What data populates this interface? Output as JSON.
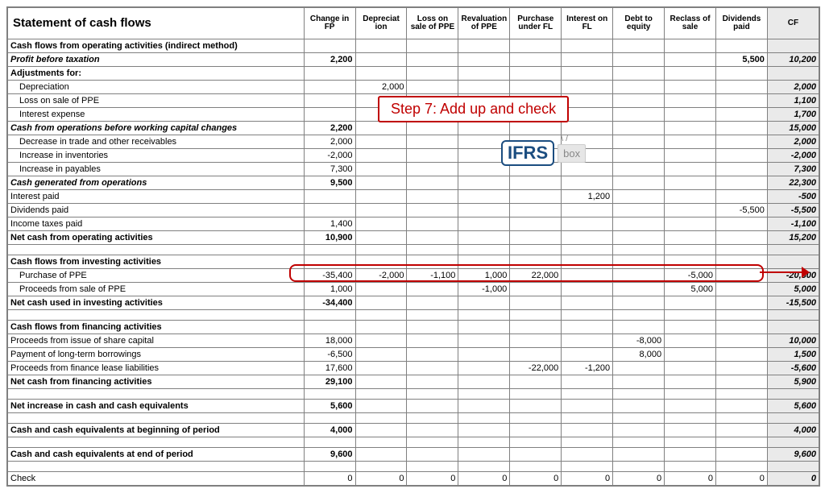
{
  "title": "Statement of cash flows",
  "columns": [
    "Change in FP",
    "Depreciat ion",
    "Loss on sale of PPE",
    "Revaluation of PPE",
    "Purchase under FL",
    "Interest on FL",
    "Debt to equity",
    "Reclass of sale",
    "Dividends paid",
    "CF"
  ],
  "colors": {
    "border": "#808080",
    "cf_bg": "#eaeaea",
    "highlight_border": "#c00000",
    "callout_text": "#c00000",
    "logo_mark": "#1b4d80"
  },
  "callout_text": "Step 7: Add up and check",
  "logo": {
    "mark": "IFRS",
    "box": "box"
  },
  "rows": [
    {
      "label": "Cash flows from operating activities (indirect method)",
      "bold": true,
      "cells": [
        "",
        "",
        "",
        "",
        "",
        "",
        "",
        "",
        "",
        ""
      ],
      "cfbold": false
    },
    {
      "label": "Profit before taxation",
      "bold": true,
      "ital": true,
      "cells": [
        "2,200",
        "",
        "",
        "",
        "",
        "",
        "",
        "",
        "5,500",
        "10,200"
      ],
      "cfbold": true
    },
    {
      "label": "Adjustments for:",
      "bold": true,
      "cells": [
        "",
        "",
        "",
        "",
        "",
        "",
        "",
        "",
        "",
        ""
      ]
    },
    {
      "label": "Depreciation",
      "ind": 1,
      "cells": [
        "",
        "2,000",
        "",
        "",
        "",
        "",
        "",
        "",
        "",
        "2,000"
      ],
      "cfbold": true
    },
    {
      "label": "Loss on sale of PPE",
      "ind": 1,
      "cells": [
        "",
        "",
        "",
        "",
        "",
        "",
        "",
        "",
        "",
        "1,100"
      ],
      "cfbold": true
    },
    {
      "label": "Interest expense",
      "ind": 1,
      "cells": [
        "",
        "",
        "",
        "",
        "",
        "",
        "",
        "",
        "",
        "1,700"
      ],
      "cfbold": true
    },
    {
      "label": "Cash from operations before working capital changes",
      "bold": true,
      "ital": true,
      "cells": [
        "2,200",
        "",
        "",
        "",
        "",
        "",
        "",
        "",
        "",
        "15,000"
      ],
      "cfbold": true
    },
    {
      "label": "Decrease in trade and other receivables",
      "ind": 1,
      "cells": [
        "2,000",
        "",
        "",
        "",
        "",
        "",
        "",
        "",
        "",
        "2,000"
      ],
      "cfbold": true
    },
    {
      "label": "Increase in inventories",
      "ind": 1,
      "cells": [
        "-2,000",
        "",
        "",
        "",
        "",
        "",
        "",
        "",
        "",
        "-2,000"
      ],
      "cfbold": true
    },
    {
      "label": "Increase in payables",
      "ind": 1,
      "cells": [
        "7,300",
        "",
        "",
        "",
        "",
        "",
        "",
        "",
        "",
        "7,300"
      ],
      "cfbold": true
    },
    {
      "label": "Cash generated from operations",
      "bold": true,
      "ital": true,
      "cells": [
        "9,500",
        "",
        "",
        "",
        "",
        "",
        "",
        "",
        "",
        "22,300"
      ],
      "cfbold": true
    },
    {
      "label": "Interest paid",
      "cells": [
        "",
        "",
        "",
        "",
        "",
        "1,200",
        "",
        "",
        "",
        "-500"
      ],
      "cfbold": true
    },
    {
      "label": "Dividends paid",
      "cells": [
        "",
        "",
        "",
        "",
        "",
        "",
        "",
        "",
        "-5,500",
        "-5,500"
      ],
      "cfbold": true
    },
    {
      "label": "Income taxes paid",
      "cells": [
        "1,400",
        "",
        "",
        "",
        "",
        "",
        "",
        "",
        "",
        "-1,100"
      ],
      "cfbold": true
    },
    {
      "label": "Net cash from operating activities",
      "bold": true,
      "cells": [
        "10,900",
        "",
        "",
        "",
        "",
        "",
        "",
        "",
        "",
        "15,200"
      ],
      "cfbold": true
    },
    {
      "spacer": true
    },
    {
      "label": "Cash flows from investing activities",
      "bold": true,
      "cells": [
        "",
        "",
        "",
        "",
        "",
        "",
        "",
        "",
        "",
        ""
      ]
    },
    {
      "label": "Purchase of PPE",
      "ind": 1,
      "cells": [
        "-35,400",
        "-2,000",
        "-1,100",
        "1,000",
        "22,000",
        "",
        "",
        "-5,000",
        "",
        "-20,500"
      ],
      "cfbold": true
    },
    {
      "label": "Proceeds from sale of PPE",
      "ind": 1,
      "cells": [
        "1,000",
        "",
        "",
        "-1,000",
        "",
        "",
        "",
        "5,000",
        "",
        "5,000"
      ],
      "cfbold": true
    },
    {
      "label": "Net cash used in investing activities",
      "bold": true,
      "cells": [
        "-34,400",
        "",
        "",
        "",
        "",
        "",
        "",
        "",
        "",
        "-15,500"
      ],
      "cfbold": true
    },
    {
      "spacer": true
    },
    {
      "label": "Cash flows from financing activities",
      "bold": true,
      "cells": [
        "",
        "",
        "",
        "",
        "",
        "",
        "",
        "",
        "",
        ""
      ]
    },
    {
      "label": "Proceeds from issue of share capital",
      "cells": [
        "18,000",
        "",
        "",
        "",
        "",
        "",
        "-8,000",
        "",
        "",
        "10,000"
      ],
      "cfbold": true
    },
    {
      "label": "Payment of long-term borrowings",
      "cells": [
        "-6,500",
        "",
        "",
        "",
        "",
        "",
        "8,000",
        "",
        "",
        "1,500"
      ],
      "cfbold": true
    },
    {
      "label": "Proceeds from finance lease liabilities",
      "cells": [
        "17,600",
        "",
        "",
        "",
        "-22,000",
        "-1,200",
        "",
        "",
        "",
        "-5,600"
      ],
      "cfbold": true
    },
    {
      "label": "Net cash from financing activities",
      "bold": true,
      "cells": [
        "29,100",
        "",
        "",
        "",
        "",
        "",
        "",
        "",
        "",
        "5,900"
      ],
      "cfbold": true
    },
    {
      "spacer": true
    },
    {
      "label": "Net increase in cash and cash equivalents",
      "bold": true,
      "cells": [
        "5,600",
        "",
        "",
        "",
        "",
        "",
        "",
        "",
        "",
        "5,600"
      ],
      "cfbold": true
    },
    {
      "spacer": true
    },
    {
      "label": "Cash and cash equivalents at beginning of period",
      "bold": true,
      "cells": [
        "4,000",
        "",
        "",
        "",
        "",
        "",
        "",
        "",
        "",
        "4,000"
      ],
      "cfbold": true
    },
    {
      "spacer": true
    },
    {
      "label": "Cash and cash equivalents at end of period",
      "bold": true,
      "cells": [
        "9,600",
        "",
        "",
        "",
        "",
        "",
        "",
        "",
        "",
        "9,600"
      ],
      "cfbold": true
    },
    {
      "spacer": true
    },
    {
      "label": "Check",
      "cells": [
        "0",
        "0",
        "0",
        "0",
        "0",
        "0",
        "0",
        "0",
        "0",
        "0"
      ],
      "cfbold": true
    }
  ]
}
